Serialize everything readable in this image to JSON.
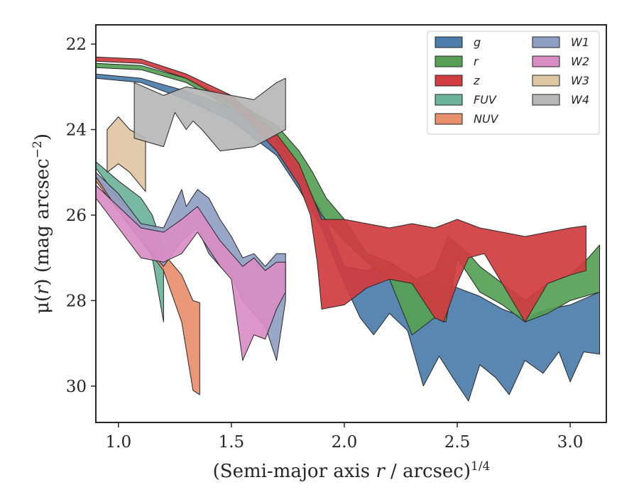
{
  "chart_data": {
    "type": "area",
    "xlabel_main": "(Semi-major axis ",
    "xlabel_var": "r",
    "xlabel_unit": " / arcsec)",
    "xlabel_exp": "1/4",
    "ylabel_main": "μ(",
    "ylabel_var": "r",
    "ylabel_unit": ") (mag arcsec",
    "ylabel_exp": "−2",
    "ylabel_close": ")",
    "xlim": [
      0.9,
      3.16
    ],
    "ylim": [
      30.85,
      21.55
    ],
    "x_ticks": [
      1.0,
      1.5,
      2.0,
      2.5,
      3.0
    ],
    "x_tick_labels": [
      "1.0",
      "1.5",
      "2.0",
      "2.5",
      "3.0"
    ],
    "y_ticks": [
      22,
      24,
      26,
      28,
      30
    ],
    "y_tick_labels": [
      "22",
      "24",
      "26",
      "28",
      "30"
    ],
    "legend_position": "top-right",
    "series": [
      {
        "name": "g",
        "color": "#4c7dab",
        "upper": [
          [
            0.9,
            22.7
          ],
          [
            1.1,
            22.8
          ],
          [
            1.3,
            23.1
          ],
          [
            1.5,
            23.5
          ],
          [
            1.7,
            24.2
          ],
          [
            1.8,
            25.0
          ],
          [
            1.9,
            25.9
          ],
          [
            2.0,
            27.2
          ],
          [
            2.1,
            27.3
          ],
          [
            2.2,
            27.1
          ],
          [
            2.3,
            27.6
          ],
          [
            2.4,
            27.5
          ],
          [
            2.5,
            27.7
          ],
          [
            2.6,
            27.9
          ],
          [
            2.7,
            28.2
          ],
          [
            2.8,
            28.4
          ],
          [
            2.9,
            28.2
          ],
          [
            3.0,
            28.1
          ],
          [
            3.13,
            27.8
          ]
        ],
        "lower": [
          [
            0.9,
            22.8
          ],
          [
            1.1,
            22.9
          ],
          [
            1.3,
            23.3
          ],
          [
            1.5,
            23.8
          ],
          [
            1.7,
            24.6
          ],
          [
            1.8,
            25.4
          ],
          [
            1.9,
            26.3
          ],
          [
            2.0,
            27.6
          ],
          [
            2.07,
            28.4
          ],
          [
            2.13,
            28.8
          ],
          [
            2.2,
            28.3
          ],
          [
            2.28,
            28.7
          ],
          [
            2.35,
            30.0
          ],
          [
            2.42,
            29.3
          ],
          [
            2.48,
            29.8
          ],
          [
            2.55,
            30.35
          ],
          [
            2.6,
            29.5
          ],
          [
            2.67,
            29.8
          ],
          [
            2.73,
            30.2
          ],
          [
            2.8,
            29.4
          ],
          [
            2.88,
            29.7
          ],
          [
            2.95,
            29.2
          ],
          [
            3.0,
            29.9
          ],
          [
            3.06,
            29.2
          ],
          [
            3.13,
            29.25
          ]
        ]
      },
      {
        "name": "r",
        "color": "#55a055",
        "upper": [
          [
            0.9,
            22.45
          ],
          [
            1.1,
            22.5
          ],
          [
            1.3,
            22.8
          ],
          [
            1.5,
            23.3
          ],
          [
            1.7,
            23.9
          ],
          [
            1.8,
            24.5
          ],
          [
            1.86,
            25.0
          ],
          [
            1.92,
            25.6
          ],
          [
            2.0,
            26.1
          ],
          [
            2.1,
            26.9
          ],
          [
            2.2,
            27.1
          ],
          [
            2.32,
            27.5
          ],
          [
            2.4,
            27.3
          ],
          [
            2.46,
            26.5
          ],
          [
            2.55,
            26.9
          ],
          [
            2.6,
            27.2
          ],
          [
            2.7,
            27.6
          ],
          [
            2.8,
            28.0
          ],
          [
            2.9,
            27.6
          ],
          [
            3.0,
            27.4
          ],
          [
            3.08,
            27.0
          ],
          [
            3.13,
            26.7
          ]
        ],
        "lower": [
          [
            0.9,
            22.55
          ],
          [
            1.1,
            22.6
          ],
          [
            1.3,
            22.9
          ],
          [
            1.5,
            23.5
          ],
          [
            1.7,
            24.2
          ],
          [
            1.8,
            25.0
          ],
          [
            1.9,
            26.0
          ],
          [
            2.0,
            26.6
          ],
          [
            2.1,
            27.1
          ],
          [
            2.2,
            27.5
          ],
          [
            2.3,
            28.8
          ],
          [
            2.4,
            28.4
          ],
          [
            2.45,
            28.5
          ],
          [
            2.5,
            27.0
          ],
          [
            2.6,
            27.8
          ],
          [
            2.7,
            28.1
          ],
          [
            2.8,
            28.5
          ],
          [
            2.9,
            28.3
          ],
          [
            3.0,
            28.0
          ],
          [
            3.13,
            27.8
          ]
        ]
      },
      {
        "name": "z",
        "color": "#d03c3f",
        "upper": [
          [
            0.9,
            22.3
          ],
          [
            1.1,
            22.35
          ],
          [
            1.3,
            22.7
          ],
          [
            1.5,
            23.2
          ],
          [
            1.7,
            24.1
          ],
          [
            1.8,
            24.8
          ],
          [
            1.9,
            26.1
          ],
          [
            2.0,
            26.1
          ],
          [
            2.1,
            26.2
          ],
          [
            2.2,
            26.3
          ],
          [
            2.3,
            26.2
          ],
          [
            2.4,
            26.3
          ],
          [
            2.5,
            26.1
          ],
          [
            2.6,
            26.3
          ],
          [
            2.7,
            26.4
          ],
          [
            2.8,
            26.5
          ],
          [
            2.9,
            26.4
          ],
          [
            3.0,
            26.3
          ],
          [
            3.07,
            26.25
          ]
        ],
        "lower": [
          [
            0.9,
            22.4
          ],
          [
            1.1,
            22.45
          ],
          [
            1.3,
            22.8
          ],
          [
            1.5,
            23.4
          ],
          [
            1.7,
            24.5
          ],
          [
            1.8,
            25.3
          ],
          [
            1.85,
            26.0
          ],
          [
            1.88,
            27.1
          ],
          [
            1.9,
            28.2
          ],
          [
            2.0,
            28.1
          ],
          [
            2.1,
            27.7
          ],
          [
            2.2,
            27.5
          ],
          [
            2.3,
            27.6
          ],
          [
            2.4,
            28.4
          ],
          [
            2.44,
            28.5
          ],
          [
            2.5,
            27.6
          ],
          [
            2.55,
            27.0
          ],
          [
            2.62,
            26.9
          ],
          [
            2.8,
            28.5
          ],
          [
            2.9,
            27.6
          ],
          [
            3.0,
            27.4
          ],
          [
            3.07,
            27.3
          ]
        ]
      },
      {
        "name": "FUV",
        "color": "#6cb39c",
        "upper": [
          [
            0.9,
            24.75
          ],
          [
            1.0,
            25.2
          ],
          [
            1.1,
            25.6
          ],
          [
            1.15,
            26.0
          ],
          [
            1.2,
            26.8
          ]
        ],
        "lower": [
          [
            0.9,
            24.9
          ],
          [
            1.0,
            25.6
          ],
          [
            1.1,
            26.4
          ],
          [
            1.15,
            27.0
          ],
          [
            1.2,
            28.5
          ]
        ]
      },
      {
        "name": "NUV",
        "color": "#e88f6e",
        "upper": [
          [
            0.9,
            25.1
          ],
          [
            1.0,
            25.6
          ],
          [
            1.1,
            26.2
          ],
          [
            1.2,
            26.9
          ],
          [
            1.28,
            27.4
          ],
          [
            1.33,
            28.0
          ],
          [
            1.36,
            28.05
          ]
        ],
        "lower": [
          [
            0.9,
            25.2
          ],
          [
            1.0,
            25.9
          ],
          [
            1.1,
            26.6
          ],
          [
            1.2,
            27.3
          ],
          [
            1.28,
            28.5
          ],
          [
            1.33,
            30.1
          ],
          [
            1.36,
            30.2
          ]
        ]
      },
      {
        "name": "W1",
        "color": "#8f9ec3",
        "upper": [
          [
            0.9,
            25.0
          ],
          [
            1.0,
            25.5
          ],
          [
            1.1,
            26.2
          ],
          [
            1.2,
            26.3
          ],
          [
            1.28,
            25.4
          ],
          [
            1.3,
            25.8
          ],
          [
            1.35,
            25.4
          ],
          [
            1.4,
            25.6
          ],
          [
            1.45,
            26.1
          ],
          [
            1.5,
            26.5
          ],
          [
            1.55,
            27.0
          ],
          [
            1.6,
            26.9
          ],
          [
            1.65,
            27.2
          ],
          [
            1.7,
            26.9
          ],
          [
            1.74,
            26.9
          ]
        ],
        "lower": [
          [
            0.9,
            25.1
          ],
          [
            1.0,
            25.9
          ],
          [
            1.1,
            26.6
          ],
          [
            1.2,
            27.2
          ],
          [
            1.28,
            26.6
          ],
          [
            1.35,
            26.3
          ],
          [
            1.4,
            26.9
          ],
          [
            1.45,
            27.2
          ],
          [
            1.5,
            27.4
          ],
          [
            1.55,
            28.0
          ],
          [
            1.6,
            28.3
          ],
          [
            1.65,
            28.6
          ],
          [
            1.7,
            29.4
          ],
          [
            1.74,
            28.0
          ]
        ]
      },
      {
        "name": "W2",
        "color": "#d98dc4",
        "upper": [
          [
            0.9,
            25.3
          ],
          [
            1.0,
            25.8
          ],
          [
            1.1,
            26.3
          ],
          [
            1.2,
            26.4
          ],
          [
            1.28,
            26.1
          ],
          [
            1.35,
            25.8
          ],
          [
            1.45,
            26.6
          ],
          [
            1.5,
            26.9
          ],
          [
            1.55,
            27.2
          ],
          [
            1.6,
            27.0
          ],
          [
            1.65,
            27.3
          ],
          [
            1.7,
            27.1
          ],
          [
            1.74,
            27.1
          ]
        ],
        "lower": [
          [
            0.9,
            25.6
          ],
          [
            1.0,
            26.3
          ],
          [
            1.1,
            27.0
          ],
          [
            1.2,
            27.1
          ],
          [
            1.28,
            26.9
          ],
          [
            1.35,
            26.4
          ],
          [
            1.45,
            27.2
          ],
          [
            1.5,
            27.5
          ],
          [
            1.55,
            29.4
          ],
          [
            1.6,
            28.8
          ],
          [
            1.65,
            28.9
          ],
          [
            1.7,
            28.2
          ],
          [
            1.74,
            27.8
          ]
        ]
      },
      {
        "name": "W3",
        "color": "#dfc6a3",
        "upper": [
          [
            0.95,
            24.0
          ],
          [
            1.0,
            23.7
          ],
          [
            1.05,
            24.0
          ],
          [
            1.12,
            24.2
          ]
        ],
        "lower": [
          [
            0.95,
            25.0
          ],
          [
            1.0,
            24.8
          ],
          [
            1.05,
            25.0
          ],
          [
            1.12,
            25.45
          ]
        ]
      },
      {
        "name": "W4",
        "color": "#b7b7b7",
        "upper": [
          [
            1.07,
            22.9
          ],
          [
            1.2,
            23.2
          ],
          [
            1.3,
            23.0
          ],
          [
            1.4,
            23.1
          ],
          [
            1.5,
            23.2
          ],
          [
            1.6,
            23.3
          ],
          [
            1.7,
            22.9
          ],
          [
            1.74,
            22.8
          ]
        ],
        "lower": [
          [
            1.07,
            24.2
          ],
          [
            1.2,
            24.4
          ],
          [
            1.25,
            23.6
          ],
          [
            1.3,
            24.0
          ],
          [
            1.33,
            23.8
          ],
          [
            1.37,
            24.0
          ],
          [
            1.45,
            24.5
          ],
          [
            1.6,
            24.4
          ],
          [
            1.74,
            24.0
          ]
        ]
      }
    ]
  }
}
